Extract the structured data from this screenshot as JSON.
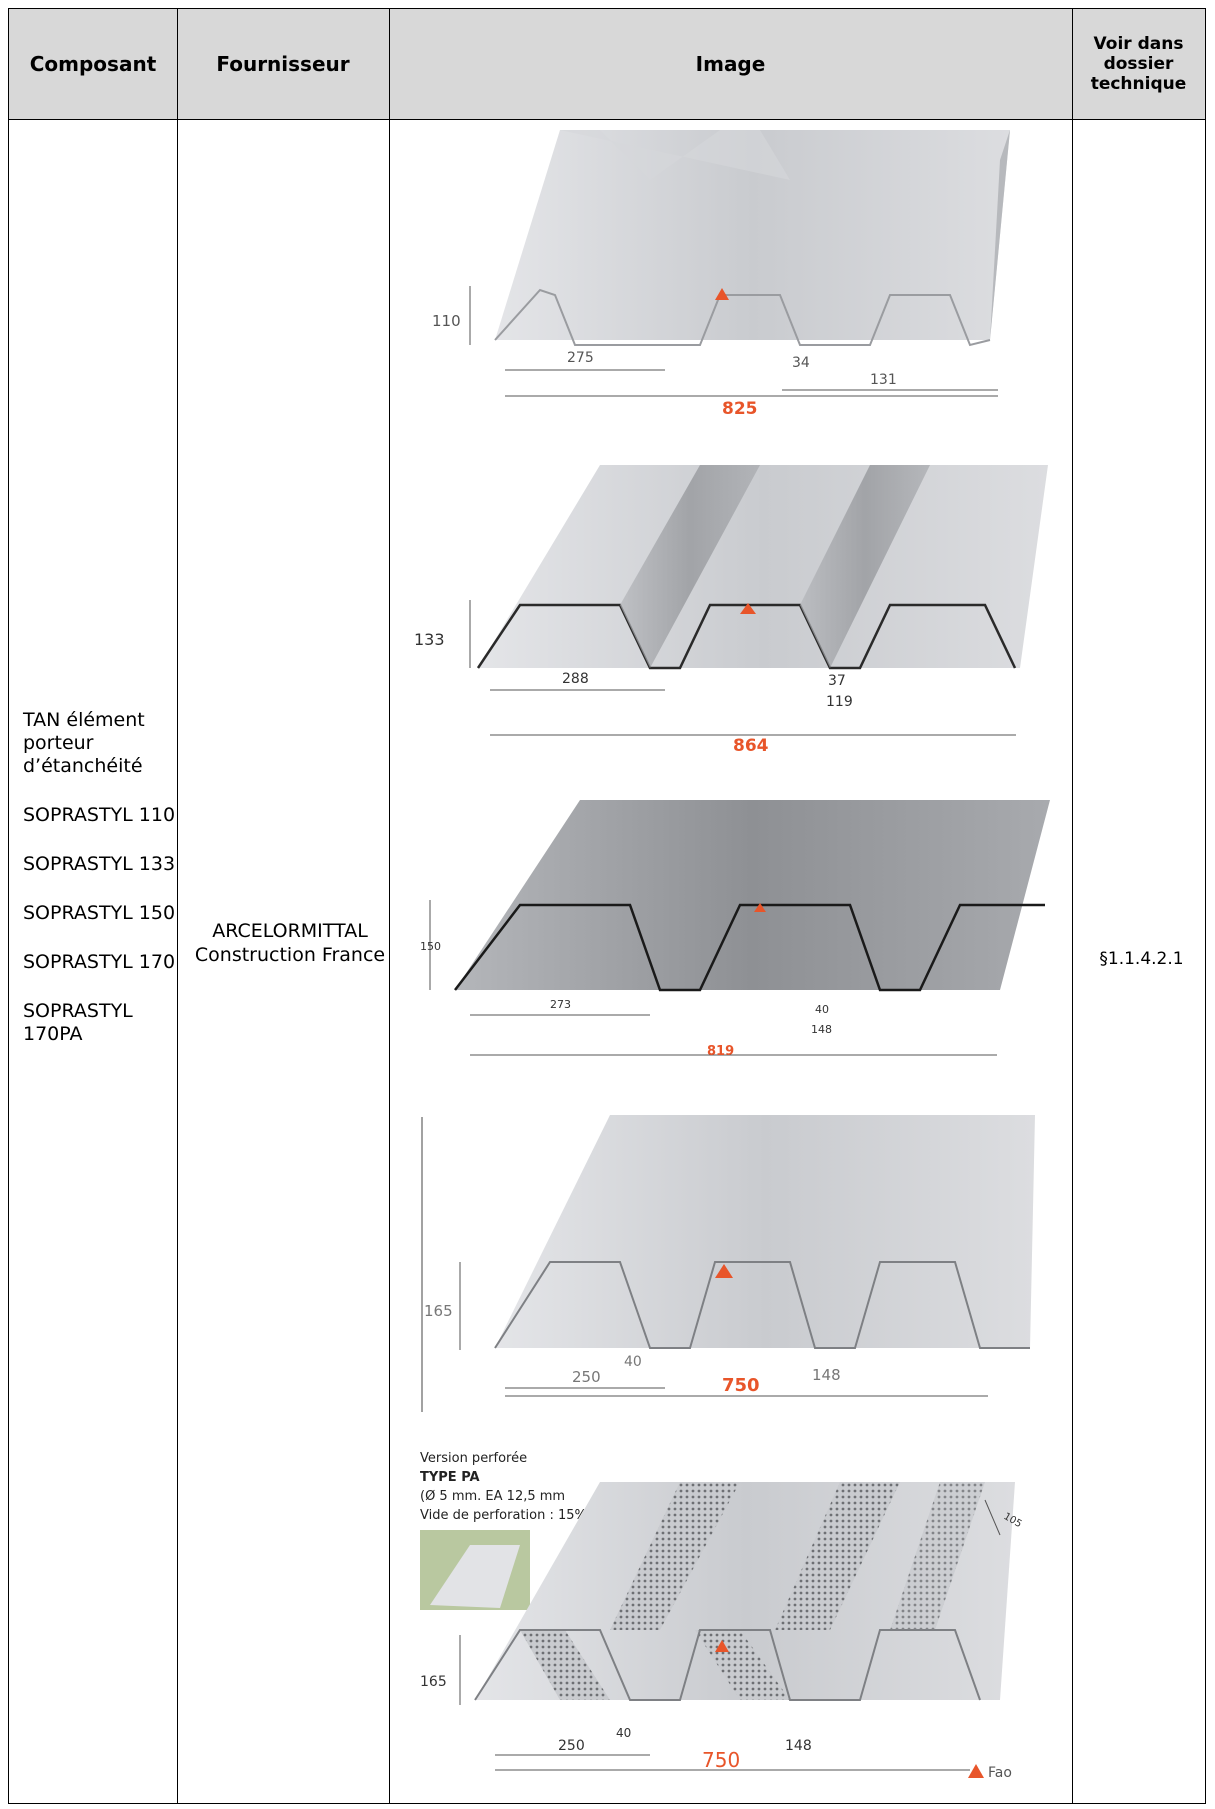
{
  "header": {
    "composant": "Composant",
    "fournisseur": "Fournisseur",
    "image": "Image",
    "voir": "Voir dans dossier technique"
  },
  "row": {
    "composant_lines": [
      "TAN élément porteur d’étanchéité",
      "SOPRASTYL 110",
      "SOPRASTYL 133",
      "SOPRASTYL 150",
      "SOPRASTYL 170",
      "SOPRASTYL 170PA"
    ],
    "fournisseur": "ARCELORMITTAL Construction France",
    "reference": "§1.1.4.2.1"
  },
  "profiles": [
    {
      "height": "110",
      "left": "275",
      "rib": "34",
      "right": "131",
      "total": "825"
    },
    {
      "height": "133",
      "left": "288",
      "rib": "37",
      "right": "119",
      "total": "864"
    },
    {
      "height": "150",
      "left": "273",
      "rib": "40",
      "right": "148",
      "total": "819"
    },
    {
      "height": "165",
      "left": "250",
      "rib": "40",
      "right": "148",
      "total": "750"
    },
    {
      "height": "165",
      "left": "250",
      "rib": "40",
      "right": "148",
      "total": "750"
    }
  ],
  "perforated": {
    "line1": "Version perforée",
    "line2": "TYPE PA",
    "line3": "(Ø 5 mm. EA 12,5 mm",
    "line4": "Vide de perforation : 15%)",
    "dim": "105",
    "legend": "Fao"
  },
  "colors": {
    "accent": "#e8552a",
    "steel": "#c9cbcf",
    "steel_dark": "#8e9094",
    "header_bg": "#d8d8d8"
  }
}
